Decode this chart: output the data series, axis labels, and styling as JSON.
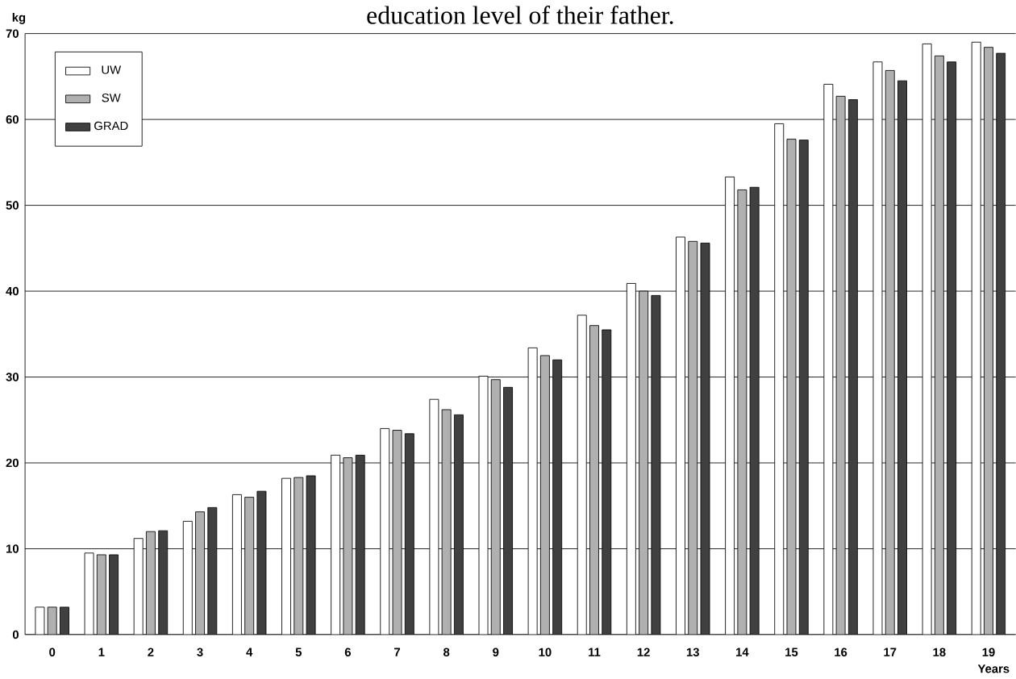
{
  "chart_data": {
    "type": "bar",
    "title": "education level of their father.",
    "ylabel": "kg",
    "xlabel": "Years",
    "categories": [
      "0",
      "1",
      "2",
      "3",
      "4",
      "5",
      "6",
      "7",
      "8",
      "9",
      "10",
      "11",
      "12",
      "13",
      "14",
      "15",
      "16",
      "17",
      "18",
      "19"
    ],
    "series": [
      {
        "name": "UW",
        "color": "#ffffff",
        "values": [
          3.2,
          9.5,
          11.2,
          13.2,
          16.3,
          18.2,
          20.9,
          24.0,
          27.4,
          30.1,
          33.4,
          37.2,
          40.9,
          46.3,
          53.3,
          59.5,
          64.1,
          66.7,
          68.8,
          69.0
        ]
      },
      {
        "name": "SW",
        "color": "#b0b0b0",
        "values": [
          3.2,
          9.3,
          12.0,
          14.3,
          16.0,
          18.3,
          20.6,
          23.8,
          26.2,
          29.7,
          32.5,
          36.0,
          40.0,
          45.8,
          51.8,
          57.7,
          62.7,
          65.7,
          67.4,
          68.4
        ]
      },
      {
        "name": "GRAD",
        "color": "#404040",
        "values": [
          3.2,
          9.3,
          12.1,
          14.8,
          16.7,
          18.5,
          20.9,
          23.4,
          25.6,
          28.8,
          32.0,
          35.5,
          39.5,
          45.6,
          52.1,
          57.6,
          62.3,
          64.5,
          66.7,
          67.7
        ]
      }
    ],
    "ylim": [
      0,
      70
    ],
    "yticks": [
      0,
      10,
      20,
      30,
      40,
      50,
      60,
      70
    ],
    "grid": "y",
    "legend": "top left"
  }
}
